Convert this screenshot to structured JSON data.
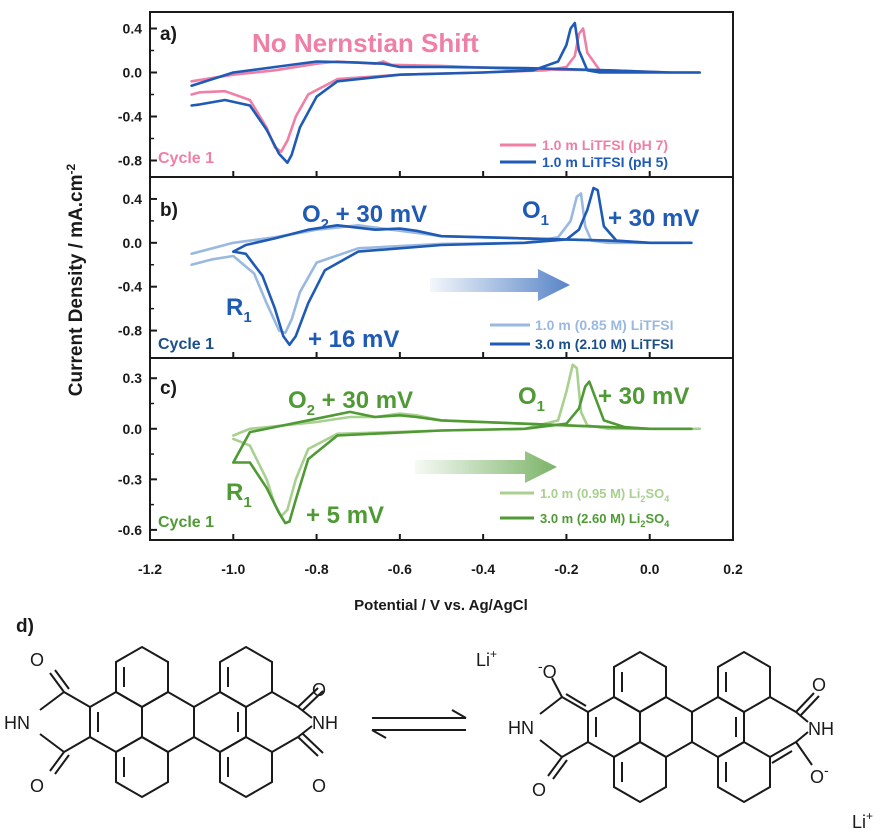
{
  "figure": {
    "ylabel": "Current Density / mA.cm",
    "ylabel_sup": "-2",
    "xlabel": "Potential / V vs. Ag/AgCl",
    "xticks": [
      "-1.2",
      "-1.0",
      "-0.8",
      "-0.6",
      "-0.4",
      "-0.2",
      "0.0",
      "0.2"
    ],
    "colors": {
      "pink": "#ef7fa5",
      "blue": "#1f5bb5",
      "lightblue": "#9ab9e0",
      "green": "#4f9a35",
      "lightgreen": "#a8d08e",
      "axis": "#1a1a1a"
    }
  },
  "panels": {
    "a": {
      "letter": "a)",
      "headline": "No Nernstian Shift",
      "cycle": "Cycle 1",
      "yticks": [
        "0.4",
        "0.0",
        "-0.4",
        "-0.8"
      ],
      "legend": [
        "1.0 m LiTFSI (pH 7)",
        "1.0 m LiTFSI (pH 5)"
      ]
    },
    "b": {
      "letter": "b)",
      "cycle": "Cycle 1",
      "yticks": [
        "0.4",
        "0.0",
        "-0.4",
        "-0.8"
      ],
      "o2": "O",
      "o2_sub": "2",
      "o2_shift": " + 30 mV",
      "o1": "O",
      "o1_sub": "1",
      "o1_shift": "+ 30 mV",
      "r1": "R",
      "r1_sub": "1",
      "r1_shift": "+ 16 mV",
      "legend": [
        "1.0 m (0.85 M) LiTFSI",
        "3.0 m (2.10 M) LiTFSI"
      ]
    },
    "c": {
      "letter": "c)",
      "cycle": "Cycle 1",
      "yticks": [
        "0.3",
        "0.0",
        "-0.3",
        "-0.6"
      ],
      "o2": "O",
      "o2_sub": "2",
      "o2_shift": " + 30 mV",
      "o1": "O",
      "o1_sub": "1",
      "o1_shift": "+ 30 mV",
      "r1": "R",
      "r1_sub": "1",
      "r1_shift": "+ 5 mV",
      "legend": [
        {
          "pre": "1.0 m (0.95 M) Li",
          "sub1": "2",
          "mid": "SO",
          "sub2": "4"
        },
        {
          "pre": "3.0 m (2.60 M) Li",
          "sub1": "2",
          "mid": "SO",
          "sub2": "4"
        }
      ]
    }
  },
  "chemistry": {
    "label": "d)",
    "li": "Li",
    "li_charge": "+",
    "o": "O",
    "o_minus": "-",
    "nh": "NH",
    "hn": "HN"
  },
  "chart_data": [
    {
      "type": "line",
      "panel": "a",
      "xlim": [
        -1.2,
        0.2
      ],
      "ylim": [
        -0.95,
        0.55
      ],
      "series": [
        {
          "name": "1.0 m LiTFSI (pH 7)",
          "color": "#ef7fa5",
          "x": [
            -1.1,
            -1.08,
            -1.02,
            -0.96,
            -0.92,
            -0.9,
            -0.885,
            -0.87,
            -0.85,
            -0.82,
            -0.75,
            -0.6,
            -0.4,
            -0.25,
            -0.2,
            -0.18,
            -0.17,
            -0.16,
            -0.15,
            -0.12,
            -0.05,
            0.05,
            0.1,
            0.12,
            0.05,
            -0.1,
            -0.3,
            -0.5,
            -0.62,
            -0.64,
            -0.66,
            -0.75,
            -0.8,
            -0.9,
            -1.0,
            -1.1
          ],
          "y": [
            -0.2,
            -0.18,
            -0.17,
            -0.25,
            -0.5,
            -0.68,
            -0.72,
            -0.62,
            -0.4,
            -0.2,
            -0.06,
            -0.02,
            0.0,
            0.02,
            0.05,
            0.15,
            0.35,
            0.4,
            0.18,
            0.02,
            0.01,
            0.0,
            0.0,
            0.0,
            0.0,
            0.02,
            0.03,
            0.06,
            0.07,
            0.1,
            0.08,
            0.1,
            0.08,
            0.02,
            -0.02,
            -0.08
          ]
        },
        {
          "name": "1.0 m LiTFSI (pH 5)",
          "color": "#1f5bb5",
          "x": [
            -1.1,
            -1.08,
            -1.02,
            -0.96,
            -0.92,
            -0.89,
            -0.87,
            -0.86,
            -0.84,
            -0.8,
            -0.75,
            -0.6,
            -0.4,
            -0.28,
            -0.22,
            -0.2,
            -0.19,
            -0.18,
            -0.17,
            -0.15,
            -0.12,
            -0.05,
            0.05,
            0.12,
            0.05,
            -0.1,
            -0.3,
            -0.5,
            -0.6,
            -0.64,
            -0.7,
            -0.8,
            -0.9,
            -1.0,
            -1.1
          ],
          "y": [
            -0.3,
            -0.29,
            -0.25,
            -0.3,
            -0.52,
            -0.74,
            -0.82,
            -0.75,
            -0.5,
            -0.22,
            -0.08,
            -0.02,
            0.0,
            0.02,
            0.1,
            0.25,
            0.4,
            0.45,
            0.2,
            0.02,
            0.0,
            0.0,
            0.0,
            0.0,
            0.0,
            0.02,
            0.04,
            0.05,
            0.05,
            0.08,
            0.09,
            0.1,
            0.05,
            0.0,
            -0.12
          ]
        }
      ]
    },
    {
      "type": "line",
      "panel": "b",
      "xlim": [
        -1.2,
        0.2
      ],
      "ylim": [
        -1.05,
        0.6
      ],
      "series": [
        {
          "name": "1.0 m (0.85 M) LiTFSI",
          "color": "#9ab9e0",
          "x": [
            -1.1,
            -1.05,
            -1.0,
            -0.95,
            -0.92,
            -0.89,
            -0.875,
            -0.86,
            -0.84,
            -0.8,
            -0.7,
            -0.5,
            -0.3,
            -0.22,
            -0.19,
            -0.175,
            -0.165,
            -0.155,
            -0.14,
            -0.1,
            0.0,
            0.08,
            0.0,
            -0.1,
            -0.3,
            -0.5,
            -0.58,
            -0.62,
            -0.7,
            -0.8,
            -0.9,
            -1.0,
            -1.1
          ],
          "y": [
            -0.2,
            -0.15,
            -0.12,
            -0.28,
            -0.55,
            -0.8,
            -0.82,
            -0.7,
            -0.45,
            -0.18,
            -0.05,
            -0.01,
            0.0,
            0.05,
            0.2,
            0.42,
            0.45,
            0.15,
            0.02,
            0.0,
            0.0,
            0.0,
            0.0,
            0.02,
            0.04,
            0.06,
            0.1,
            0.12,
            0.16,
            0.12,
            0.05,
            0.0,
            -0.1
          ]
        },
        {
          "name": "3.0 m (2.10 M) LiTFSI",
          "color": "#1f5bb5",
          "x": [
            -1.0,
            -0.97,
            -0.93,
            -0.9,
            -0.88,
            -0.865,
            -0.85,
            -0.82,
            -0.78,
            -0.7,
            -0.5,
            -0.3,
            -0.2,
            -0.17,
            -0.15,
            -0.135,
            -0.125,
            -0.11,
            -0.08,
            0.0,
            0.1,
            0.0,
            -0.1,
            -0.3,
            -0.5,
            -0.56,
            -0.6,
            -0.66,
            -0.75,
            -0.82,
            -0.9,
            -0.97,
            -1.0
          ],
          "y": [
            -0.08,
            -0.1,
            -0.3,
            -0.6,
            -0.85,
            -0.93,
            -0.85,
            -0.55,
            -0.25,
            -0.08,
            -0.02,
            0.0,
            0.03,
            0.12,
            0.3,
            0.5,
            0.48,
            0.15,
            0.02,
            0.0,
            0.0,
            0.0,
            0.02,
            0.04,
            0.06,
            0.11,
            0.13,
            0.12,
            0.16,
            0.12,
            0.04,
            -0.02,
            -0.08
          ]
        }
      ]
    },
    {
      "type": "line",
      "panel": "c",
      "xlim": [
        -1.2,
        0.2
      ],
      "ylim": [
        -0.66,
        0.42
      ],
      "series": [
        {
          "name": "1.0 m (0.95 M) Li2SO4",
          "color": "#a8d08e",
          "x": [
            -1.0,
            -0.96,
            -0.92,
            -0.9,
            -0.885,
            -0.87,
            -0.85,
            -0.82,
            -0.75,
            -0.5,
            -0.3,
            -0.22,
            -0.2,
            -0.185,
            -0.175,
            -0.165,
            -0.15,
            -0.1,
            0.0,
            0.12,
            0.0,
            -0.1,
            -0.3,
            -0.5,
            -0.56,
            -0.6,
            -0.66,
            -0.72,
            -0.8,
            -0.88,
            -0.96,
            -1.0
          ],
          "y": [
            -0.06,
            -0.1,
            -0.3,
            -0.45,
            -0.52,
            -0.48,
            -0.3,
            -0.12,
            -0.03,
            -0.01,
            0.0,
            0.05,
            0.22,
            0.38,
            0.36,
            0.1,
            0.02,
            0.0,
            0.0,
            0.0,
            0.0,
            0.01,
            0.03,
            0.05,
            0.08,
            0.09,
            0.07,
            0.07,
            0.04,
            0.02,
            0.0,
            -0.04
          ]
        },
        {
          "name": "3.0 m (2.60 M) Li2SO4",
          "color": "#4f9a35",
          "x": [
            -1.0,
            -0.96,
            -0.92,
            -0.89,
            -0.875,
            -0.865,
            -0.85,
            -0.82,
            -0.75,
            -0.5,
            -0.3,
            -0.2,
            -0.17,
            -0.155,
            -0.145,
            -0.13,
            -0.11,
            -0.06,
            0.0,
            0.1,
            0.0,
            -0.1,
            -0.3,
            -0.5,
            -0.56,
            -0.6,
            -0.66,
            -0.72,
            -0.8,
            -0.88,
            -0.96,
            -1.0
          ],
          "y": [
            -0.2,
            -0.2,
            -0.35,
            -0.5,
            -0.56,
            -0.55,
            -0.42,
            -0.18,
            -0.04,
            -0.01,
            0.0,
            0.03,
            0.12,
            0.25,
            0.28,
            0.18,
            0.05,
            0.01,
            0.0,
            0.0,
            0.0,
            0.01,
            0.03,
            0.05,
            0.07,
            0.08,
            0.07,
            0.1,
            0.06,
            0.02,
            -0.02,
            -0.2
          ]
        }
      ]
    }
  ]
}
